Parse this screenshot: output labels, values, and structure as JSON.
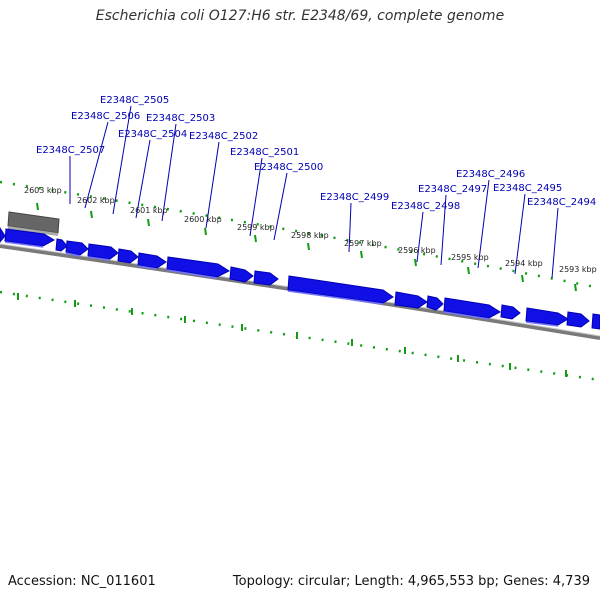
{
  "title": "Escherichia coli O127:H6 str. E2348/69, complete genome",
  "footer": {
    "accession": "Accession: NC_011601",
    "stats": "Topology: circular; Length: 4,965,553 bp; Genes: 4,739"
  },
  "colors": {
    "gene_fill": "#1010e6",
    "gene_stroke": "#0000b4",
    "tick": "#149a14",
    "backbone": "#7a7a7a",
    "label": "#0000b4"
  },
  "kbp_labels": [
    "2603 kbp",
    "2602 kbp",
    "2601 kbp",
    "2600 kbp",
    "2599 kbp",
    "2598 kbp",
    "2597 kbp",
    "2596 kbp",
    "2595 kbp",
    "2594 kbp",
    "2593 kbp"
  ],
  "gene_labels": [
    "E2348C_2507",
    "E2348C_2506",
    "E2348C_2505",
    "E2348C_2504",
    "E2348C_2503",
    "E2348C_2502",
    "E2348C_2501",
    "E2348C_2500",
    "E2348C_2499",
    "E2348C_2498",
    "E2348C_2497",
    "E2348C_2496",
    "E2348C_2495",
    "E2348C_2494"
  ],
  "kbp_ticks": [
    2603,
    2602,
    2601,
    2600,
    2599,
    2598,
    2597,
    2596,
    2595,
    2594,
    2593
  ]
}
